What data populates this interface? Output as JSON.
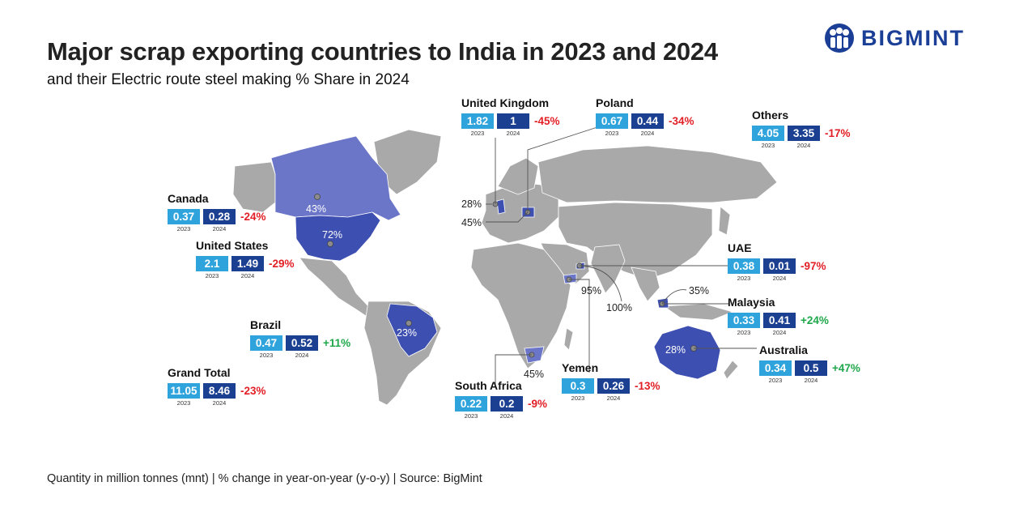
{
  "title": "Major scrap exporting countries to India in 2023 and 2024",
  "subtitle": "and their Electric route steel making % Share in 2024",
  "logo": {
    "text": "BIGMINT",
    "icon": "bigmint-logo-icon"
  },
  "year_labels": {
    "y2023": "2023",
    "y2024": "2024"
  },
  "countries": {
    "uk": {
      "name": "United Kingdom",
      "v2023": "1.82",
      "v2024": "1",
      "change": "-45%",
      "share": "28%"
    },
    "poland": {
      "name": "Poland",
      "v2023": "0.67",
      "v2024": "0.44",
      "change": "-34%",
      "share": "45%"
    },
    "others": {
      "name": "Others",
      "v2023": "4.05",
      "v2024": "3.35",
      "change": "-17%"
    },
    "canada": {
      "name": "Canada",
      "v2023": "0.37",
      "v2024": "0.28",
      "change": "-24%",
      "share": "43%"
    },
    "us": {
      "name": "United States",
      "v2023": "2.1",
      "v2024": "1.49",
      "change": "-29%",
      "share": "72%"
    },
    "uae": {
      "name": "UAE",
      "v2023": "0.38",
      "v2024": "0.01",
      "change": "-97%",
      "share": "100%"
    },
    "malaysia": {
      "name": "Malaysia",
      "v2023": "0.33",
      "v2024": "0.41",
      "change": "+24%",
      "share": "35%"
    },
    "brazil": {
      "name": "Brazil",
      "v2023": "0.47",
      "v2024": "0.52",
      "change": "+11%",
      "share": "23%"
    },
    "australia": {
      "name": "Australia",
      "v2023": "0.34",
      "v2024": "0.5",
      "change": "+47%",
      "share": "28%"
    },
    "grand_total": {
      "name": "Grand Total",
      "v2023": "11.05",
      "v2024": "8.46",
      "change": "-23%"
    },
    "yemen": {
      "name": "Yemen",
      "v2023": "0.3",
      "v2024": "0.26",
      "change": "-13%",
      "share": "95%"
    },
    "south_africa": {
      "name": "South Africa",
      "v2023": "0.22",
      "v2024": "0.2",
      "change": "-9%",
      "share": "45%"
    }
  },
  "colors": {
    "land": "#a9a9a9",
    "highlight": "#3d4fb0",
    "canada": "#6b76c9",
    "box2023": "#2ea3dc",
    "box2024": "#1b3f91",
    "negative": "#e21f26",
    "positive": "#1fa84b"
  },
  "footer": "Quantity in million tonnes (mnt) | % change in year-on-year (y-o-y) | Source: BigMint"
}
